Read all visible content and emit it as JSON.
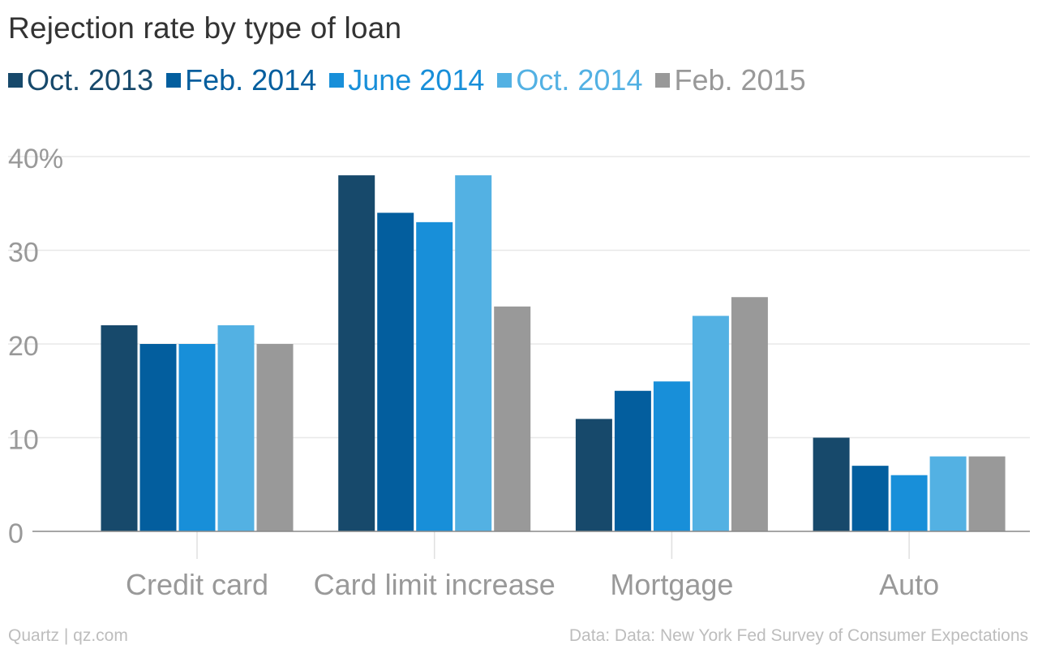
{
  "chart_data": {
    "type": "bar",
    "title": "Rejection rate by type of loan",
    "categories": [
      "Credit card",
      "Card limit increase",
      "Mortgage",
      "Auto"
    ],
    "series": [
      {
        "name": "Oct. 2013",
        "color": "#17496b",
        "values": [
          22,
          38,
          12,
          10
        ]
      },
      {
        "name": "Feb. 2014",
        "color": "#035e9e",
        "values": [
          20,
          34,
          15,
          7
        ]
      },
      {
        "name": "June 2014",
        "color": "#188fd9",
        "values": [
          20,
          33,
          16,
          6
        ]
      },
      {
        "name": "Oct. 2014",
        "color": "#53b1e3",
        "values": [
          22,
          38,
          23,
          8
        ]
      },
      {
        "name": "Feb. 2015",
        "color": "#999999",
        "values": [
          20,
          24,
          25,
          8
        ]
      }
    ],
    "yticks": [
      "0",
      "10",
      "20",
      "30",
      "40%"
    ],
    "ytick_values": [
      0,
      10,
      20,
      30,
      40
    ],
    "ylim": [
      0,
      40
    ],
    "grid": true,
    "legend_position": "top-left"
  },
  "footer": {
    "credit": "Quartz | qz.com",
    "source": "Data: Data: New York Fed Survey of Consumer Expectations"
  }
}
